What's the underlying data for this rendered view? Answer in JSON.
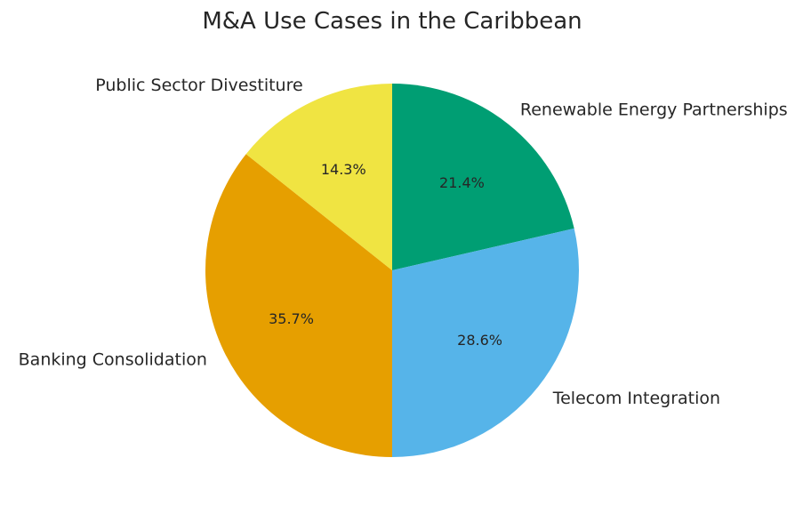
{
  "chart_data": {
    "type": "pie",
    "title": "M&A Use Cases in the Caribbean",
    "start_angle_deg": 90,
    "direction": "clockwise",
    "legend": "none",
    "slices": [
      {
        "label": "Renewable Energy Partnerships",
        "value": 21.4,
        "pct_label": "21.4%",
        "color": "#009E73"
      },
      {
        "label": "Telecom Integration",
        "value": 28.6,
        "pct_label": "28.6%",
        "color": "#56B4E9"
      },
      {
        "label": "Banking Consolidation",
        "value": 35.7,
        "pct_label": "35.7%",
        "color": "#E69F00"
      },
      {
        "label": "Public Sector Divestiture",
        "value": 14.3,
        "pct_label": "14.3%",
        "color": "#F0E442"
      }
    ]
  }
}
